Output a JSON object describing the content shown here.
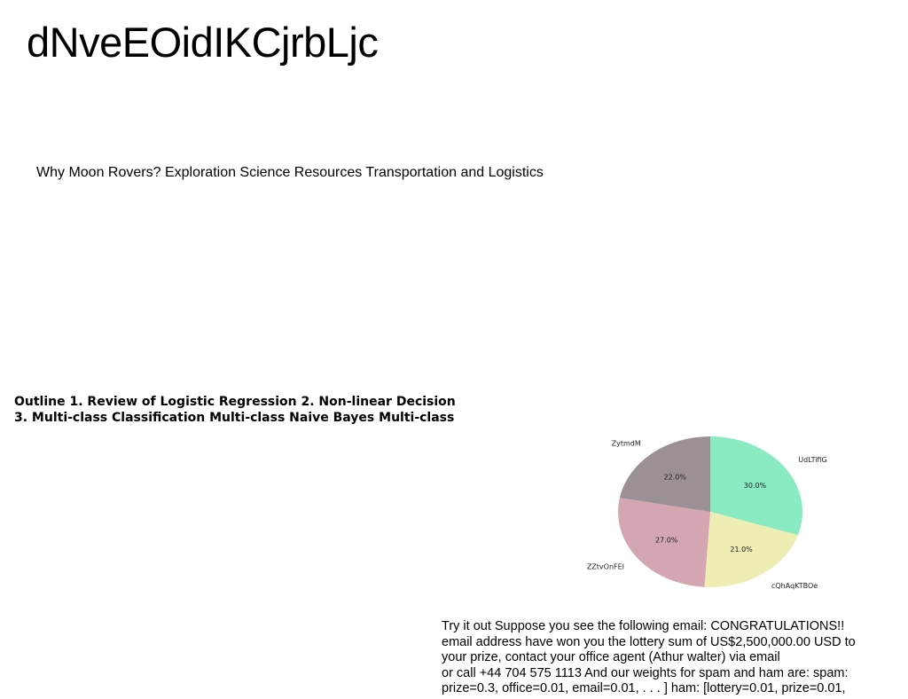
{
  "slide": {
    "title": "dNveEOidIKCjrbLjc",
    "subtitle": "Why Moon Rovers? Exploration Science Resources Transportation and Logistics",
    "outline_lines": [
      "Outline 1. Review of Logistic Regression 2. Non-linear Decision",
      "3. Multi-class Classification Multi-class Naive Bayes Multi-class"
    ],
    "body_lines": [
      "Try it out Suppose you see the following email: CONGRATULATIONS!!",
      "email address have won you the lottery sum of US$2,500,000.00 USD to",
      "your prize, contact your office agent (Athur walter) via email",
      "or call +44 704 575 1113 And our weights for spam and ham are: spam:",
      "prize=0.3, office=0.01, email=0.01, . . . ] ham: [lottery=0.01, prize=0.01,"
    ]
  },
  "chart_data": {
    "type": "pie",
    "categories": [
      "UdLTifiG",
      "cQhAqKTBOe",
      "ZZtvOnFEI",
      "ZytmdM"
    ],
    "values": [
      30.0,
      21.0,
      27.0,
      22.0
    ],
    "labels": [
      "30.0%",
      "21.0%",
      "27.0%",
      "22.0%"
    ],
    "colors": [
      "#8aebc3",
      "#eeeeb4",
      "#d3a6b1",
      "#9b9095"
    ],
    "start_angle_deg": 90,
    "direction": "clockwise"
  }
}
